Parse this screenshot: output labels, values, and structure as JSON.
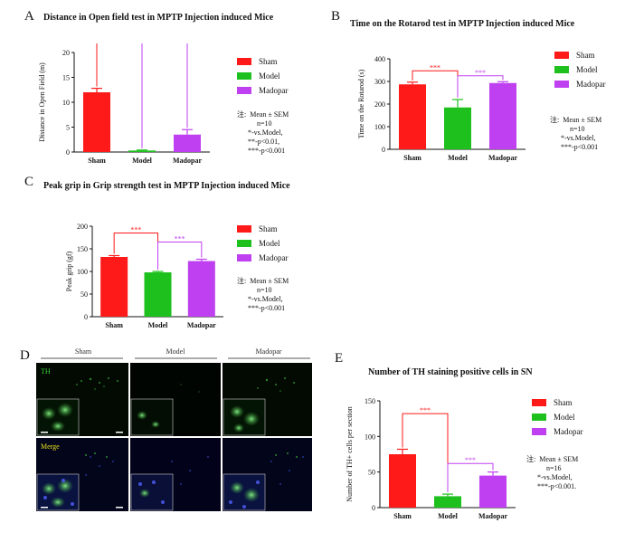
{
  "colors": {
    "sham": "#ff1a1a",
    "model": "#1ec01e",
    "madopar": "#bf40f0"
  },
  "legend_labels": [
    "Sham",
    "Model",
    "Madopar"
  ],
  "panels": [
    {
      "letter": "A",
      "title": "Distance in Open field test in MPTP Injection induced Mice",
      "note": "注:  Mean ± SEM\n           n=10\n      *-vs.Model,\n      **-p<0.01,\n      ***-p<0.001",
      "sig": [
        "***",
        "**"
      ]
    },
    {
      "letter": "B",
      "title": "Time on the Rotarod test in MPTP Injection induced Mice",
      "note": "注:  Mean ± SEM\n           n=10\n      *-vs.Model,\n      ***-p<0.001",
      "sig": [
        "***",
        "***"
      ]
    },
    {
      "letter": "C",
      "title": "Peak grip in Grip strength test in MPTP Injection induced Mice",
      "note": "注:  Mean ± SEM\n           n=10\n      *-vs.Model,\n      ***-p<0.001",
      "sig": [
        "***",
        "***"
      ]
    },
    {
      "letter": "D"
    },
    {
      "letter": "E",
      "title": "Number of TH staining positive cells in SN",
      "note": "注:  Mean ± SEM\n           n=16\n      *-vs.Model,\n      ***-p<0.001.",
      "sig": [
        "***",
        "***"
      ]
    }
  ],
  "chart_data": [
    {
      "type": "bar",
      "categories": [
        "Sham",
        "Model",
        "Madopar"
      ],
      "values": [
        12.0,
        0.3,
        3.5
      ],
      "errors": [
        0.8,
        0.1,
        1.0
      ],
      "ylabel": "Distance in Open Field (m)",
      "ylim": [
        0,
        20
      ],
      "yticks": [
        0,
        5,
        10,
        15,
        20
      ]
    },
    {
      "type": "bar",
      "categories": [
        "Sham",
        "Model",
        "Madopar"
      ],
      "values": [
        287,
        185,
        293
      ],
      "errors": [
        10,
        35,
        6
      ],
      "ylabel": "Time on the Rotarod (s)",
      "ylim": [
        0,
        400
      ],
      "yticks": [
        0,
        100,
        200,
        300,
        400
      ]
    },
    {
      "type": "bar",
      "categories": [
        "Sham",
        "Model",
        "Madopar"
      ],
      "values": [
        132,
        98,
        123
      ],
      "errors": [
        3,
        2,
        4
      ],
      "ylabel": "Peak grip (gf)",
      "ylim": [
        0,
        200
      ],
      "yticks": [
        0,
        50,
        100,
        150,
        200
      ]
    },
    {
      "type": "bar",
      "categories": [
        "Sham",
        "Model",
        "Madopar"
      ],
      "values": [
        75,
        16,
        45
      ],
      "errors": [
        7,
        3,
        5
      ],
      "ylabel": "Number of TH+ cells per section",
      "ylim": [
        0,
        150
      ],
      "yticks": [
        0,
        50,
        100,
        150
      ]
    }
  ],
  "micrograph": {
    "columns": [
      "Sham",
      "Model",
      "Madopar"
    ],
    "rows": [
      "TH",
      "Merge"
    ]
  }
}
